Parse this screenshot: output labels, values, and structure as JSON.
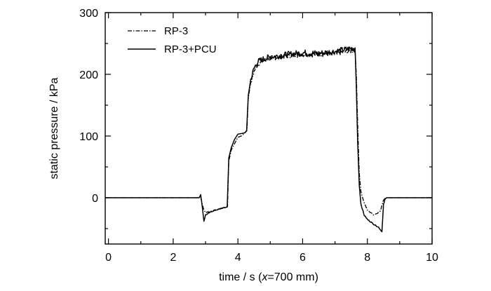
{
  "chart_data": {
    "type": "line",
    "title": "",
    "xlabel": {
      "prefix": "time / s (",
      "italic": "x",
      "suffix": "=700 mm)"
    },
    "ylabel": "static pressure / kPa",
    "xlim": [
      -0.1,
      10
    ],
    "ylim": [
      -75,
      300
    ],
    "xticks": [
      0,
      2,
      4,
      6,
      8,
      10
    ],
    "yticks": [
      0,
      100,
      200,
      300
    ],
    "grid": false,
    "legend_position": "top-left",
    "series": [
      {
        "name": "RP-3",
        "style": "dash-dot",
        "points": [
          [
            -0.1,
            0
          ],
          [
            2.8,
            0
          ],
          [
            2.85,
            2
          ],
          [
            2.9,
            -10
          ],
          [
            2.95,
            -20
          ],
          [
            3.0,
            -24
          ],
          [
            3.3,
            -20
          ],
          [
            3.6,
            -16
          ],
          [
            3.68,
            -14
          ],
          [
            3.72,
            60
          ],
          [
            3.8,
            78
          ],
          [
            3.9,
            88
          ],
          [
            4.0,
            98
          ],
          [
            4.1,
            100
          ],
          [
            4.2,
            104
          ],
          [
            4.28,
            110
          ],
          [
            4.32,
            160
          ],
          [
            4.4,
            185
          ],
          [
            4.5,
            205
          ],
          [
            4.6,
            215
          ],
          [
            4.8,
            222
          ],
          [
            5.0,
            226
          ],
          [
            5.5,
            230
          ],
          [
            6.0,
            232
          ],
          [
            6.5,
            232
          ],
          [
            7.0,
            234
          ],
          [
            7.5,
            238
          ],
          [
            7.62,
            240
          ],
          [
            7.66,
            200
          ],
          [
            7.7,
            120
          ],
          [
            7.75,
            40
          ],
          [
            7.8,
            10
          ],
          [
            7.9,
            -8
          ],
          [
            8.0,
            -20
          ],
          [
            8.2,
            -28
          ],
          [
            8.4,
            -22
          ],
          [
            8.45,
            -12
          ],
          [
            8.5,
            -3
          ],
          [
            8.6,
            0
          ],
          [
            10,
            0
          ]
        ]
      },
      {
        "name": "RP-3+PCU",
        "style": "solid",
        "points": [
          [
            -0.1,
            0
          ],
          [
            2.8,
            0
          ],
          [
            2.85,
            5
          ],
          [
            2.9,
            -15
          ],
          [
            2.95,
            -38
          ],
          [
            3.0,
            -28
          ],
          [
            3.2,
            -22
          ],
          [
            3.5,
            -17
          ],
          [
            3.67,
            -15
          ],
          [
            3.72,
            65
          ],
          [
            3.8,
            82
          ],
          [
            3.9,
            95
          ],
          [
            4.0,
            103
          ],
          [
            4.1,
            104
          ],
          [
            4.2,
            105
          ],
          [
            4.27,
            108
          ],
          [
            4.32,
            165
          ],
          [
            4.4,
            192
          ],
          [
            4.5,
            210
          ],
          [
            4.6,
            220
          ],
          [
            4.8,
            225
          ],
          [
            5.0,
            228
          ],
          [
            5.5,
            232
          ],
          [
            6.0,
            235
          ],
          [
            6.5,
            234
          ],
          [
            7.0,
            237
          ],
          [
            7.5,
            242
          ],
          [
            7.62,
            243
          ],
          [
            7.66,
            180
          ],
          [
            7.7,
            90
          ],
          [
            7.75,
            20
          ],
          [
            7.8,
            -10
          ],
          [
            7.9,
            -28
          ],
          [
            8.0,
            -35
          ],
          [
            8.2,
            -43
          ],
          [
            8.35,
            -48
          ],
          [
            8.45,
            -55
          ],
          [
            8.5,
            -10
          ],
          [
            8.55,
            -2
          ],
          [
            8.6,
            0
          ],
          [
            10,
            0
          ]
        ]
      }
    ]
  }
}
